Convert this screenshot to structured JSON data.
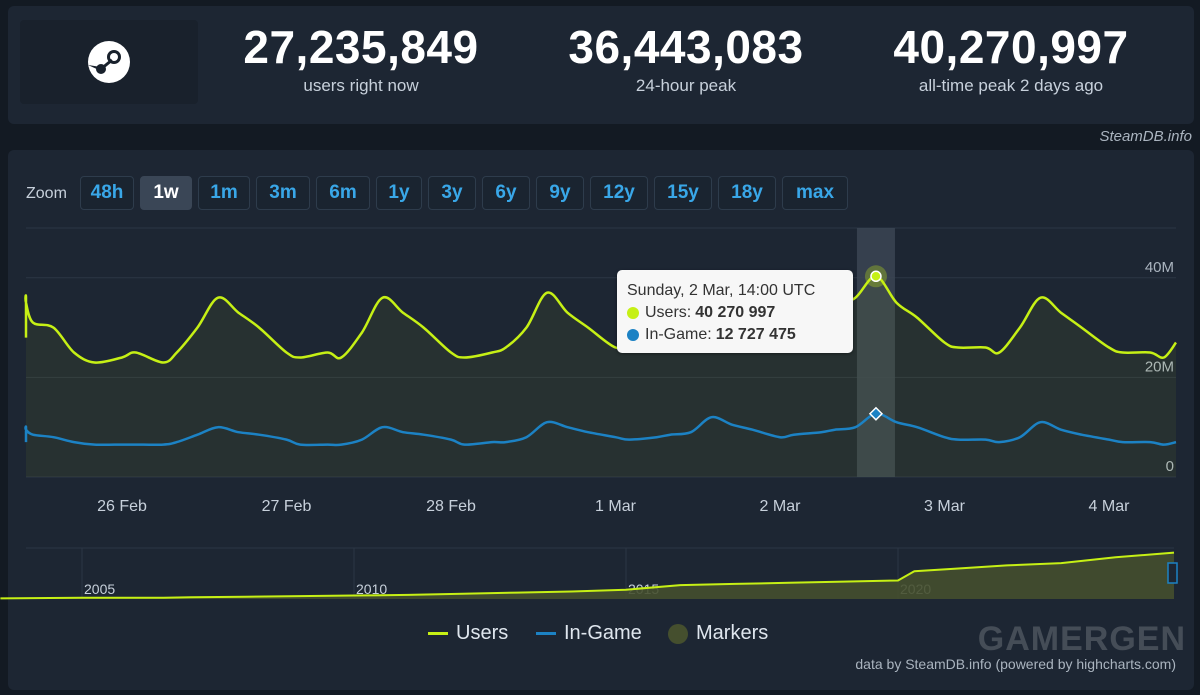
{
  "header": {
    "stats": [
      {
        "value": "27,235,849",
        "label": "users right now"
      },
      {
        "value": "36,443,083",
        "label": "24-hour peak"
      },
      {
        "value": "40,270,997",
        "label": "all-time peak 2 days ago"
      }
    ],
    "credit": "SteamDB.info"
  },
  "zoom": {
    "label": "Zoom",
    "buttons": [
      "48h",
      "1w",
      "1m",
      "3m",
      "6m",
      "1y",
      "3y",
      "6y",
      "9y",
      "12y",
      "15y",
      "18y",
      "max"
    ],
    "active": "1w"
  },
  "tooltip": {
    "title": "Sunday, 2 Mar, 14:00 UTC",
    "users_label": "Users:",
    "users_value": "40 270 997",
    "ingame_label": "In-Game:",
    "ingame_value": "12 727 475"
  },
  "legend": {
    "users": "Users",
    "ingame": "In-Game",
    "markers": "Markers"
  },
  "footer_credit": "data by SteamDB.info (powered by highcharts.com)",
  "watermark": "GAMERGEN",
  "colors": {
    "users": "#c6f015",
    "ingame": "#1c82c4",
    "markers": "#454f2e",
    "crosshair": "#3b4553"
  },
  "chart_data": [
    {
      "type": "line",
      "ylim": [
        0,
        50
      ],
      "y_ticks": [
        "0",
        "20M",
        "40M"
      ],
      "y_tick_values": [
        0,
        20,
        40
      ],
      "x_ticks": [
        "26 Feb",
        "27 Feb",
        "28 Feb",
        "1 Mar",
        "2 Mar",
        "3 Mar",
        "4 Mar"
      ],
      "x": [
        "25 Feb 02:00",
        "25 Feb 06:00",
        "25 Feb 08:00",
        "25 Feb 11:00",
        "25 Feb 14:00",
        "25 Feb 17:00",
        "25 Feb 20:00",
        "26 Feb 00:00",
        "26 Feb 02:00",
        "26 Feb 06:00",
        "26 Feb 08:00",
        "26 Feb 11:00",
        "26 Feb 14:00",
        "26 Feb 17:00",
        "26 Feb 20:00",
        "27 Feb 00:00",
        "27 Feb 02:00",
        "27 Feb 06:00",
        "27 Feb 08:00",
        "27 Feb 11:00",
        "27 Feb 14:00",
        "27 Feb 17:00",
        "27 Feb 20:00",
        "28 Feb 00:00",
        "28 Feb 02:00",
        "28 Feb 06:00",
        "28 Feb 08:00",
        "28 Feb 11:00",
        "28 Feb 14:00",
        "28 Feb 17:00",
        "28 Feb 20:00",
        "1 Mar 00:00",
        "1 Mar 02:00",
        "1 Mar 06:00",
        "1 Mar 08:00",
        "1 Mar 11:00",
        "1 Mar 14:00",
        "1 Mar 17:00",
        "1 Mar 20:00",
        "2 Mar 00:00",
        "2 Mar 02:00",
        "2 Mar 06:00",
        "2 Mar 08:00",
        "2 Mar 11:00",
        "2 Mar 14:00",
        "2 Mar 17:00",
        "2 Mar 20:00",
        "3 Mar 00:00",
        "3 Mar 02:00",
        "3 Mar 06:00",
        "3 Mar 08:00",
        "3 Mar 11:00",
        "3 Mar 14:00",
        "3 Mar 17:00",
        "3 Mar 20:00",
        "4 Mar 00:00",
        "4 Mar 02:00",
        "4 Mar 06:00",
        "4 Mar 08:00",
        "4 Mar 11:00"
      ],
      "series": [
        {
          "name": "Users",
          "values": [
            28,
            36,
            35,
            31,
            30,
            25,
            23,
            24,
            25,
            23,
            25,
            30,
            36,
            33,
            30,
            25,
            24,
            25,
            24,
            29,
            36,
            33,
            30,
            25,
            24,
            25,
            26,
            30,
            37,
            33,
            30,
            26,
            27,
            29,
            31,
            33,
            37,
            32,
            29,
            27,
            28,
            31,
            34,
            36,
            40.3,
            35,
            32,
            27,
            26,
            26,
            25,
            30,
            36,
            33,
            30,
            26,
            25,
            25,
            24,
            27
          ]
        },
        {
          "name": "In-Game",
          "values": [
            7,
            10,
            9.5,
            8.5,
            8,
            7,
            6.5,
            6.5,
            6.5,
            6.5,
            7,
            8.5,
            10,
            9,
            8.5,
            7.5,
            6.5,
            6.5,
            6.5,
            7.5,
            10,
            9,
            8.5,
            7.5,
            6.5,
            7,
            7,
            8,
            11,
            10,
            9,
            8,
            7.5,
            8,
            8.5,
            9,
            12,
            10.5,
            9.5,
            8,
            8.5,
            9,
            9.5,
            10,
            12.7,
            11,
            10,
            8,
            7.5,
            7.5,
            7,
            8,
            11,
            9.5,
            8.5,
            7.5,
            7,
            7,
            6.5,
            7
          ]
        }
      ]
    },
    {
      "type": "area",
      "x_ticks": [
        "2005",
        "2010",
        "2015",
        "2020"
      ],
      "x": [
        2003.5,
        2005,
        2006.5,
        2007,
        2008,
        2009,
        2010,
        2011,
        2012,
        2013,
        2014,
        2015,
        2016,
        2017,
        2018,
        2019,
        2020,
        2020.3,
        2021,
        2022,
        2023,
        2024,
        2025.2
      ],
      "series": [
        {
          "name": "Users",
          "values": [
            0.5,
            1,
            1,
            1.5,
            2,
            2.5,
            3,
            3.5,
            4.5,
            5.5,
            6.5,
            8,
            12,
            13,
            14,
            15,
            16,
            24,
            26,
            29,
            31,
            36,
            40
          ]
        }
      ]
    }
  ]
}
